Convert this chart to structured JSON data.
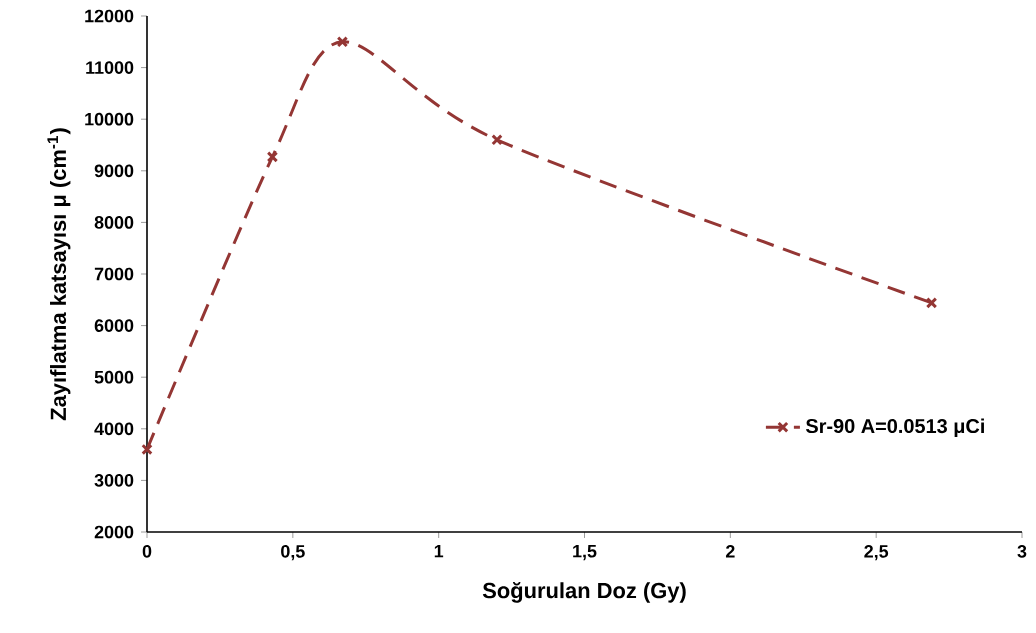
{
  "chart_data": {
    "type": "line",
    "xlabel": "Soğurulan Doz (Gy)",
    "ylabel": "Zayıflatma katsayısı μ (cm$^{-1}$)",
    "x": [
      0,
      0.43,
      0.67,
      1.2,
      2.69
    ],
    "series": [
      {
        "name": "Sr-90 A=0.0513 μCi",
        "color": "#943634",
        "values": [
          3600,
          9270,
          11500,
          9600,
          6440
        ]
      }
    ],
    "xlim": [
      0,
      3
    ],
    "xticks": [
      {
        "value": 0,
        "label": "0"
      },
      {
        "value": 0.5,
        "label": "0,5"
      },
      {
        "value": 1,
        "label": "1"
      },
      {
        "value": 1.5,
        "label": "1,5"
      },
      {
        "value": 2,
        "label": "2"
      },
      {
        "value": 2.5,
        "label": "2,5"
      },
      {
        "value": 3,
        "label": "3"
      }
    ],
    "ylim": [
      2000,
      12000
    ],
    "yticks": [
      2000,
      3000,
      4000,
      5000,
      6000,
      7000,
      8000,
      9000,
      10000,
      11000,
      12000
    ],
    "grid": false,
    "legend": "bottom right",
    "marker": "cross",
    "line_style": "dashed"
  }
}
